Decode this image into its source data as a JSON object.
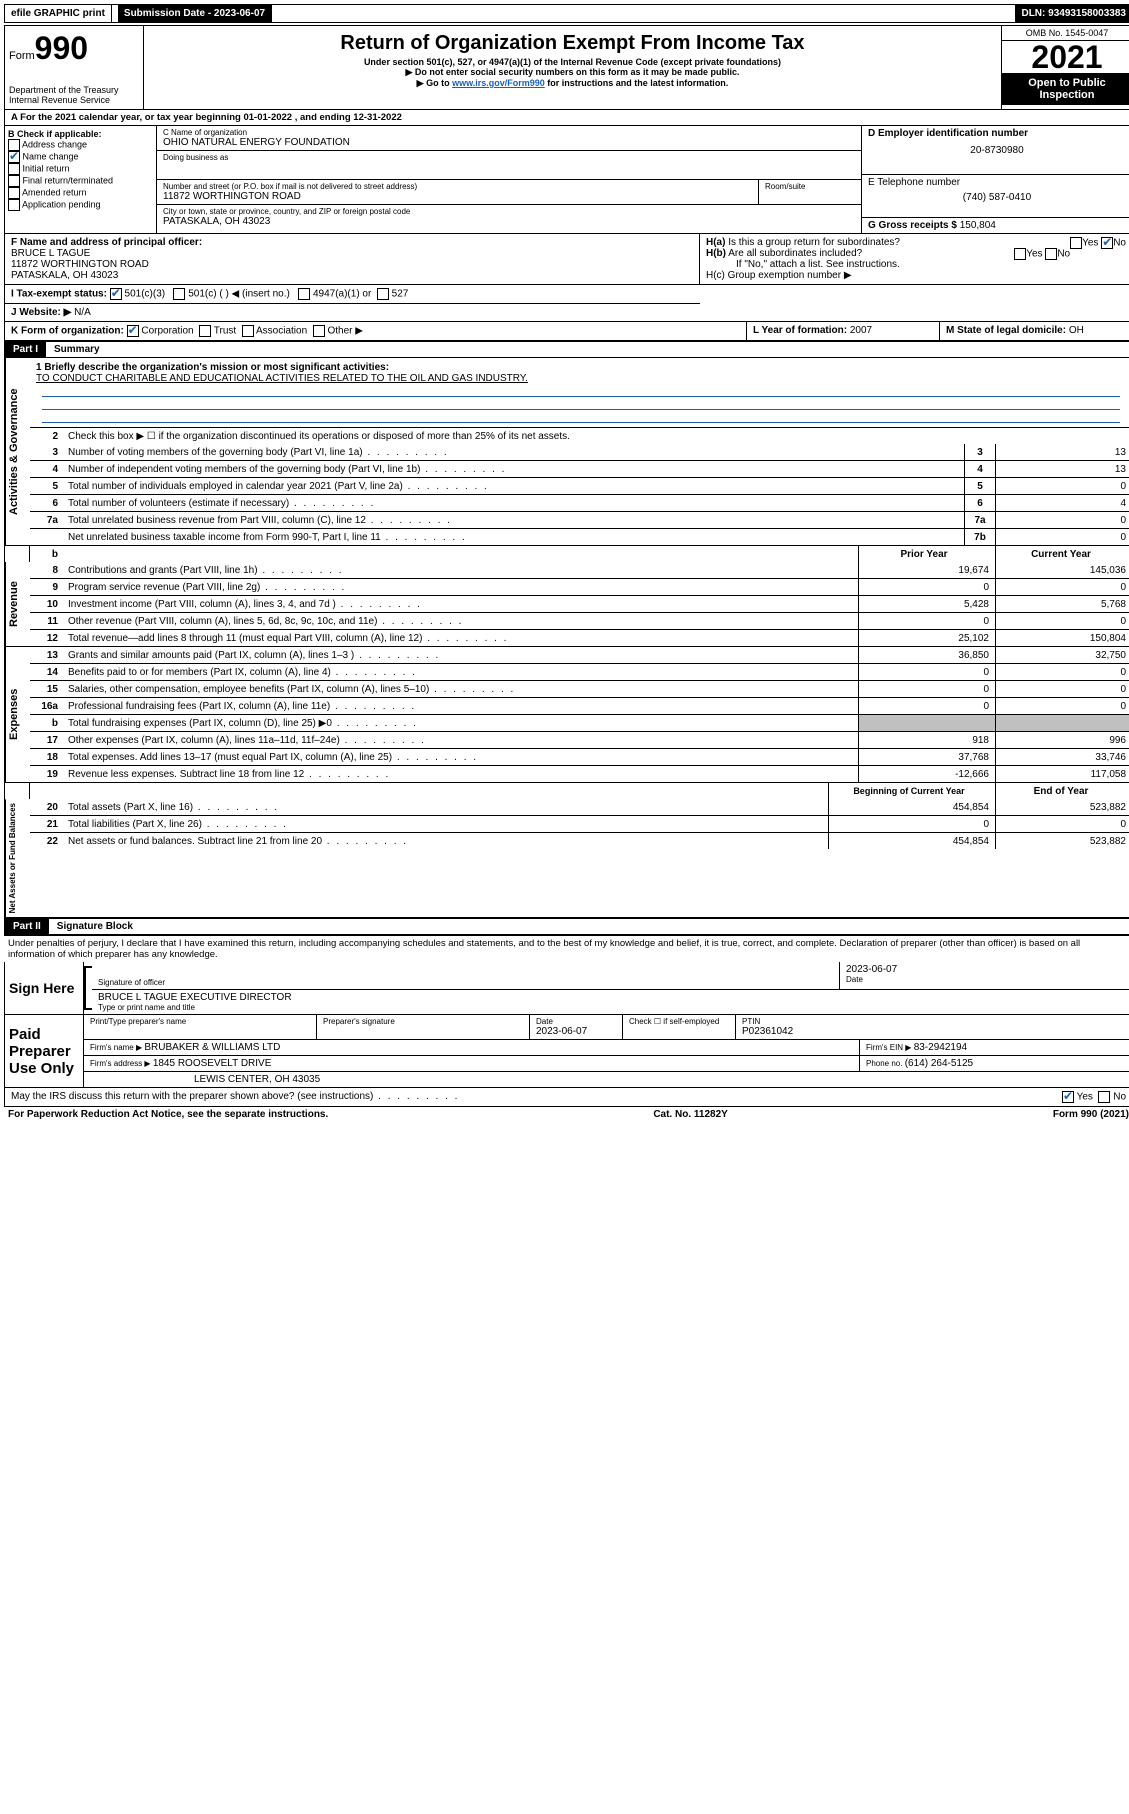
{
  "topbar": {
    "efile": "efile GRAPHIC print",
    "sub_label": "Submission Date - 2023-06-07",
    "dln": "DLN: 93493158003383"
  },
  "header": {
    "form_prefix": "Form",
    "form_num": "990",
    "dept": "Department of the Treasury",
    "irs": "Internal Revenue Service",
    "title": "Return of Organization Exempt From Income Tax",
    "sub1": "Under section 501(c), 527, or 4947(a)(1) of the Internal Revenue Code (except private foundations)",
    "sub2": "▶ Do not enter social security numbers on this form as it may be made public.",
    "sub3_pre": "▶ Go to ",
    "sub3_link": "www.irs.gov/Form990",
    "sub3_post": " for instructions and the latest information.",
    "omb": "OMB No. 1545-0047",
    "year": "2021",
    "inspect1": "Open to Public",
    "inspect2": "Inspection"
  },
  "rowA": "A For the 2021 calendar year, or tax year beginning 01-01-2022   , and ending 12-31-2022",
  "colB": {
    "title": "B Check if applicable:",
    "items": [
      "Address change",
      "Name change",
      "Initial return",
      "Final return/terminated",
      "Amended return",
      "Application pending"
    ],
    "checked_idx": 1
  },
  "colC": {
    "name_label": "C Name of organization",
    "name": "OHIO NATURAL ENERGY FOUNDATION",
    "dba_label": "Doing business as",
    "addr_label": "Number and street (or P.O. box if mail is not delivered to street address)",
    "room_label": "Room/suite",
    "addr": "11872 WORTHINGTON ROAD",
    "city_label": "City or town, state or province, country, and ZIP or foreign postal code",
    "city": "PATASKALA, OH  43023"
  },
  "colD": {
    "ein_label": "D Employer identification number",
    "ein": "20-8730980",
    "phone_label": "E Telephone number",
    "phone": "(740) 587-0410",
    "gross_label": "G Gross receipts $ ",
    "gross": "150,804"
  },
  "rowF": {
    "label": "F  Name and address of principal officer:",
    "name": "BRUCE L TAGUE",
    "addr1": "11872 WORTHINGTON ROAD",
    "addr2": "PATASKALA, OH  43023"
  },
  "rowH": {
    "ha": "H(a)  Is this a group return for subordinates?",
    "hb": "H(b)  Are all subordinates included?",
    "hb_note": "If \"No,\" attach a list. See instructions.",
    "hc": "H(c)  Group exemption number ▶"
  },
  "rowI": {
    "label": "I   Tax-exempt status:",
    "opts": [
      "501(c)(3)",
      "501(c) (  ) ◀ (insert no.)",
      "4947(a)(1) or",
      "527"
    ]
  },
  "rowJ": {
    "label": "J   Website: ▶ ",
    "val": "N/A"
  },
  "rowK": {
    "label": "K Form of organization:",
    "opts": [
      "Corporation",
      "Trust",
      "Association",
      "Other ▶"
    ]
  },
  "rowL": {
    "label": "L Year of formation: ",
    "val": "2007"
  },
  "rowM": {
    "label": "M State of legal domicile: ",
    "val": "OH"
  },
  "part1": {
    "num": "Part I",
    "title": "Summary"
  },
  "mission": {
    "q": "1   Briefly describe the organization's mission or most significant activities:",
    "text": "TO CONDUCT CHARITABLE AND EDUCATIONAL ACTIVITIES RELATED TO THE OIL AND GAS INDUSTRY."
  },
  "gov": {
    "label": "Activities & Governance",
    "l2": "Check this box ▶ ☐  if the organization discontinued its operations or disposed of more than 25% of its net assets.",
    "lines": [
      {
        "n": "3",
        "t": "Number of voting members of the governing body (Part VI, line 1a)",
        "box": "3",
        "v": "13"
      },
      {
        "n": "4",
        "t": "Number of independent voting members of the governing body (Part VI, line 1b)",
        "box": "4",
        "v": "13"
      },
      {
        "n": "5",
        "t": "Total number of individuals employed in calendar year 2021 (Part V, line 2a)",
        "box": "5",
        "v": "0"
      },
      {
        "n": "6",
        "t": "Total number of volunteers (estimate if necessary)",
        "box": "6",
        "v": "4"
      },
      {
        "n": "7a",
        "t": "Total unrelated business revenue from Part VIII, column (C), line 12",
        "box": "7a",
        "v": "0"
      },
      {
        "n": "",
        "t": "Net unrelated business taxable income from Form 990-T, Part I, line 11",
        "box": "7b",
        "v": "0"
      }
    ]
  },
  "twocol_header": {
    "b": "b",
    "prior": "Prior Year",
    "current": "Current Year"
  },
  "rev": {
    "label": "Revenue",
    "lines": [
      {
        "n": "8",
        "t": "Contributions and grants (Part VIII, line 1h)",
        "p": "19,674",
        "c": "145,036"
      },
      {
        "n": "9",
        "t": "Program service revenue (Part VIII, line 2g)",
        "p": "0",
        "c": "0"
      },
      {
        "n": "10",
        "t": "Investment income (Part VIII, column (A), lines 3, 4, and 7d )",
        "p": "5,428",
        "c": "5,768"
      },
      {
        "n": "11",
        "t": "Other revenue (Part VIII, column (A), lines 5, 6d, 8c, 9c, 10c, and 11e)",
        "p": "0",
        "c": "0"
      },
      {
        "n": "12",
        "t": "Total revenue—add lines 8 through 11 (must equal Part VIII, column (A), line 12)",
        "p": "25,102",
        "c": "150,804"
      }
    ]
  },
  "exp": {
    "label": "Expenses",
    "lines": [
      {
        "n": "13",
        "t": "Grants and similar amounts paid (Part IX, column (A), lines 1–3 )",
        "p": "36,850",
        "c": "32,750"
      },
      {
        "n": "14",
        "t": "Benefits paid to or for members (Part IX, column (A), line 4)",
        "p": "0",
        "c": "0"
      },
      {
        "n": "15",
        "t": "Salaries, other compensation, employee benefits (Part IX, column (A), lines 5–10)",
        "p": "0",
        "c": "0"
      },
      {
        "n": "16a",
        "t": "Professional fundraising fees (Part IX, column (A), line 11e)",
        "p": "0",
        "c": "0"
      },
      {
        "n": "b",
        "t": "Total fundraising expenses (Part IX, column (D), line 25) ▶0",
        "p": "",
        "c": "",
        "shaded": true
      },
      {
        "n": "17",
        "t": "Other expenses (Part IX, column (A), lines 11a–11d, 11f–24e)",
        "p": "918",
        "c": "996"
      },
      {
        "n": "18",
        "t": "Total expenses. Add lines 13–17 (must equal Part IX, column (A), line 25)",
        "p": "37,768",
        "c": "33,746"
      },
      {
        "n": "19",
        "t": "Revenue less expenses. Subtract line 18 from line 12",
        "p": "-12,666",
        "c": "117,058"
      }
    ]
  },
  "net_header": {
    "prior": "Beginning of Current Year",
    "current": "End of Year"
  },
  "net": {
    "label": "Net Assets or Fund Balances",
    "lines": [
      {
        "n": "20",
        "t": "Total assets (Part X, line 16)",
        "p": "454,854",
        "c": "523,882"
      },
      {
        "n": "21",
        "t": "Total liabilities (Part X, line 26)",
        "p": "0",
        "c": "0"
      },
      {
        "n": "22",
        "t": "Net assets or fund balances. Subtract line 21 from line 20",
        "p": "454,854",
        "c": "523,882"
      }
    ]
  },
  "part2": {
    "num": "Part II",
    "title": "Signature Block"
  },
  "perjury": "Under penalties of perjury, I declare that I have examined this return, including accompanying schedules and statements, and to the best of my knowledge and belief, it is true, correct, and complete. Declaration of preparer (other than officer) is based on all information of which preparer has any knowledge.",
  "sign": {
    "here": "Sign Here",
    "sig_label": "Signature of officer",
    "date_label": "Date",
    "date": "2023-06-07",
    "name": "BRUCE L TAGUE  EXECUTIVE DIRECTOR",
    "name_label": "Type or print name and title"
  },
  "paid": {
    "title": "Paid Preparer Use Only",
    "h1": "Print/Type preparer's name",
    "h2": "Preparer's signature",
    "h3_label": "Date",
    "h3": "2023-06-07",
    "h4": "Check ☐ if self-employed",
    "h5_label": "PTIN",
    "h5": "P02361042",
    "firm_label": "Firm's name    ▶ ",
    "firm": "BRUBAKER & WILLIAMS LTD",
    "ein_label": "Firm's EIN ▶ ",
    "ein": "83-2942194",
    "addr_label": "Firm's address ▶ ",
    "addr1": "1845 ROOSEVELT DRIVE",
    "addr2": "LEWIS CENTER, OH  43035",
    "phone_label": "Phone no. ",
    "phone": "(614) 264-5125"
  },
  "discuss": "May the IRS discuss this return with the preparer shown above? (see instructions)",
  "footer": {
    "left": "For Paperwork Reduction Act Notice, see the separate instructions.",
    "mid": "Cat. No. 11282Y",
    "right": "Form 990 (2021)"
  }
}
